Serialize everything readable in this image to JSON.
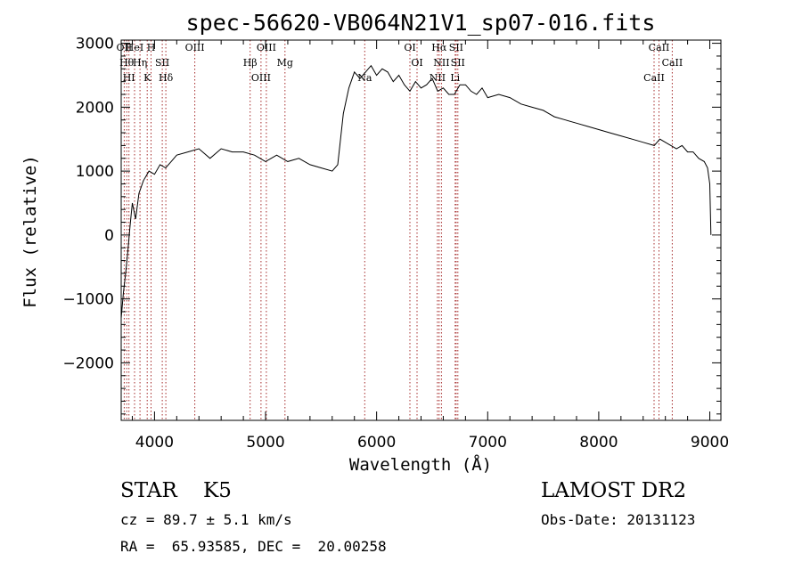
{
  "chart_data": {
    "type": "line",
    "title": "spec-56620-VB064N21V1_sp07-016.fits",
    "xlabel": "Wavelength (Å)",
    "ylabel": "Flux (relative)",
    "xlim": [
      3700,
      9100
    ],
    "ylim": [
      -2900,
      3050
    ],
    "xticks": [
      4000,
      5000,
      6000,
      7000,
      8000,
      9000
    ],
    "yticks": [
      -2000,
      -1000,
      0,
      1000,
      2000,
      3000
    ],
    "yticklabels": [
      "−2000",
      "−1000",
      "0",
      "1000",
      "2000",
      "3000"
    ],
    "grid": false,
    "line_color": "#000000",
    "marker_color": "#a52a2a",
    "series": [
      {
        "x": [
          3700,
          3720,
          3740,
          3760,
          3780,
          3800,
          3830,
          3860,
          3900,
          3950,
          4000,
          4050,
          4100,
          4150,
          4200,
          4300,
          4400,
          4500,
          4600,
          4700,
          4800,
          4900,
          5000,
          5100,
          5200,
          5300,
          5400,
          5500,
          5600,
          5650,
          5700,
          5750,
          5800,
          5850,
          5900,
          5950,
          6000,
          6050,
          6100,
          6150,
          6200,
          6250,
          6300,
          6350,
          6400,
          6450,
          6500,
          6550,
          6600,
          6650,
          6700,
          6750,
          6800,
          6850,
          6900,
          6950,
          7000,
          7100,
          7200,
          7300,
          7400,
          7500,
          7600,
          7700,
          7800,
          7900,
          8000,
          8100,
          8200,
          8300,
          8400,
          8500,
          8550,
          8600,
          8650,
          8700,
          8750,
          8800,
          8850,
          8900,
          8950,
          8980,
          9000,
          9010
        ],
        "y": [
          -1300,
          -900,
          -600,
          -250,
          150,
          500,
          250,
          650,
          850,
          1000,
          950,
          1100,
          1050,
          1150,
          1250,
          1300,
          1350,
          1200,
          1350,
          1300,
          1300,
          1250,
          1150,
          1250,
          1150,
          1200,
          1100,
          1050,
          1000,
          1100,
          1900,
          2300,
          2550,
          2450,
          2550,
          2650,
          2500,
          2600,
          2550,
          2400,
          2500,
          2350,
          2250,
          2400,
          2300,
          2350,
          2450,
          2250,
          2300,
          2200,
          2200,
          2350,
          2350,
          2250,
          2200,
          2300,
          2150,
          2200,
          2150,
          2050,
          2000,
          1950,
          1850,
          1800,
          1750,
          1700,
          1650,
          1600,
          1550,
          1500,
          1450,
          1400,
          1500,
          1450,
          1400,
          1350,
          1400,
          1300,
          1300,
          1200,
          1150,
          1050,
          800,
          0
        ]
      }
    ],
    "lines": [
      {
        "x": 3727,
        "label": "OII"
      },
      {
        "x": 3750,
        "label": "Hθ"
      },
      {
        "x": 3770,
        "label": "HI"
      },
      {
        "x": 3820,
        "label": "HeI"
      },
      {
        "x": 3869,
        "label": "Hη"
      },
      {
        "x": 3934,
        "label": "K"
      },
      {
        "x": 3969,
        "label": "H"
      },
      {
        "x": 4070,
        "label": "SII"
      },
      {
        "x": 4102,
        "label": "Hδ"
      },
      {
        "x": 4363,
        "label": "OIII"
      },
      {
        "x": 4861,
        "label": "Hβ"
      },
      {
        "x": 4959,
        "label": "OIII"
      },
      {
        "x": 5007,
        "label": "OIII"
      },
      {
        "x": 5175,
        "label": "Mg"
      },
      {
        "x": 5893,
        "label": "Na"
      },
      {
        "x": 6300,
        "label": "OI"
      },
      {
        "x": 6364,
        "label": "OI"
      },
      {
        "x": 6548,
        "label": "NII"
      },
      {
        "x": 6563,
        "label": "Hα"
      },
      {
        "x": 6584,
        "label": "NII"
      },
      {
        "x": 6707,
        "label": "Li"
      },
      {
        "x": 6716,
        "label": "SII"
      },
      {
        "x": 6731,
        "label": "SII"
      },
      {
        "x": 8498,
        "label": "CaII"
      },
      {
        "x": 8542,
        "label": "CaII"
      },
      {
        "x": 8662,
        "label": "CaII"
      }
    ]
  },
  "footer": {
    "classification": "STAR    K5",
    "survey": "LAMOST DR2",
    "cz": "cz = 89.7 ± 5.1 km/s",
    "obs_date": "Obs-Date: 20131123",
    "coords": "RA =  65.93585, DEC =  20.00258"
  }
}
